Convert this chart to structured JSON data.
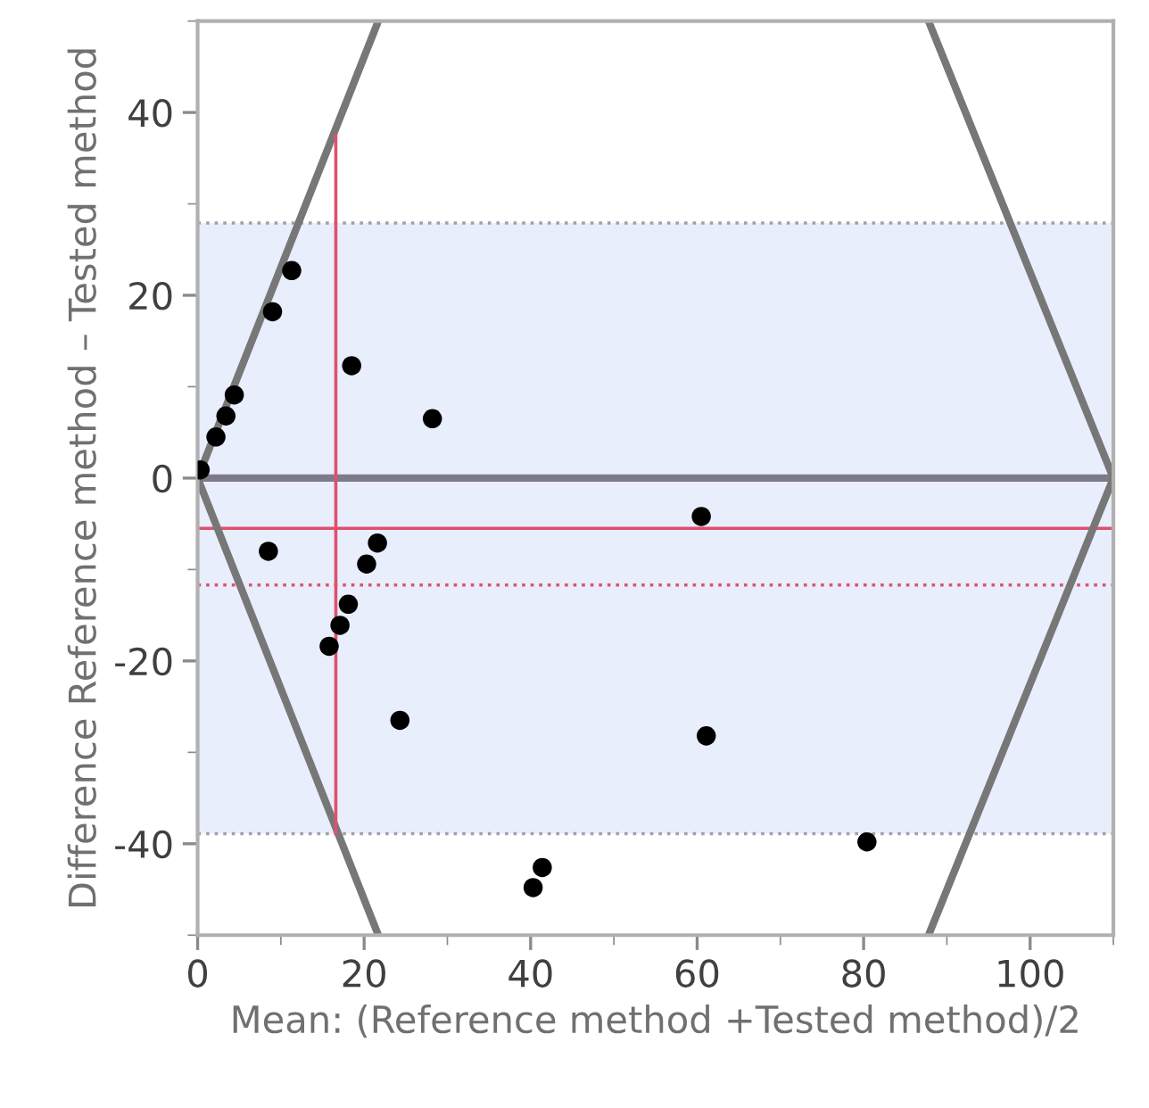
{
  "chart_data": {
    "type": "scatter",
    "xlabel": "Mean: (Reference method +Tested method)/2",
    "ylabel": "Difference Reference method – Tested method",
    "xlim": [
      0,
      110
    ],
    "ylim": [
      -50,
      50
    ],
    "xticks": [
      0,
      20,
      40,
      60,
      80,
      100
    ],
    "yticks": [
      {
        "value": -40,
        "label": "-40"
      },
      {
        "value": -20,
        "label": "-20"
      },
      0,
      20,
      40
    ],
    "grid": false,
    "legend": false,
    "series": [
      {
        "marker": "circle",
        "color": "#000000",
        "x": [
          11.3,
          9.0,
          18.5,
          28.2,
          4.4,
          3.4,
          2.2,
          0.3,
          8.5,
          21.6,
          20.3,
          18.1,
          17.1,
          15.8,
          24.3,
          41.4,
          40.3,
          60.5,
          61.1,
          80.4
        ],
        "values": [
          22.7,
          18.2,
          12.3,
          6.5,
          9.1,
          6.8,
          4.5,
          0.9,
          -8.0,
          -7.1,
          -9.4,
          -13.8,
          -16.1,
          -18.4,
          -26.5,
          -42.6,
          -44.8,
          -4.2,
          -28.2,
          -39.8
        ]
      },
      {
        "type": "line",
        "color": "#777777",
        "x": [
          21.7,
          0,
          21.7
        ],
        "values": [
          50,
          0,
          -50
        ]
      },
      {
        "type": "line",
        "color": "#777777",
        "x": [
          87.8,
          110,
          87.8
        ],
        "values": [
          50,
          0,
          -50
        ]
      },
      {
        "type": "line",
        "color": "#e0506e",
        "x": [
          16.6,
          16.6
        ],
        "values": [
          37.5,
          -38.9
        ]
      }
    ],
    "bands": [
      {
        "axis": "y",
        "from": -38.9,
        "to": 27.9,
        "color": "#e8eefb"
      }
    ],
    "ref_lines": [
      {
        "axis": "y",
        "value": 0,
        "color": "#7f7a8a",
        "line_style": "solid"
      },
      {
        "axis": "y",
        "value": -5.5,
        "color": "#e0506e",
        "line_style": "solid"
      },
      {
        "axis": "y",
        "value": -11.7,
        "color": "#e0506e",
        "line_style": "dotted"
      },
      {
        "axis": "y",
        "value": 27.9,
        "color": "#a0a0a8",
        "line_style": "dotted"
      },
      {
        "axis": "y",
        "value": -38.9,
        "color": "#a0a0a8",
        "line_style": "dotted"
      }
    ]
  }
}
